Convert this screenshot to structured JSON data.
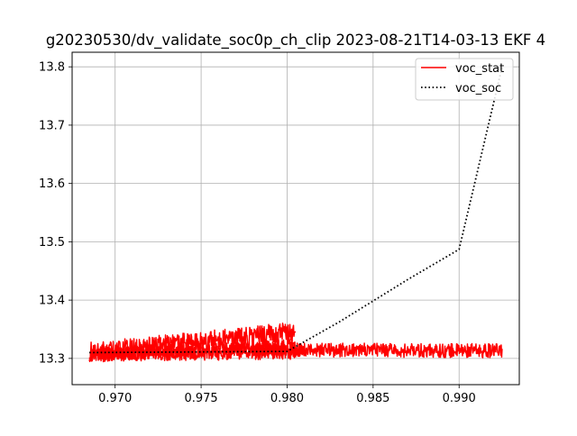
{
  "chart_data": {
    "type": "line",
    "title": "g20230530/dv_validate_soc0p_ch_clip   2023-08-21T14-03-13 EKF 4",
    "xlabel": "",
    "ylabel": "",
    "xlim": [
      0.9675,
      0.9935
    ],
    "ylim": [
      13.255,
      13.825
    ],
    "xticks": [
      0.97,
      0.975,
      0.98,
      0.985,
      0.99
    ],
    "xtick_labels": [
      "0.970",
      "0.975",
      "0.980",
      "0.985",
      "0.990"
    ],
    "yticks": [
      13.3,
      13.4,
      13.5,
      13.6,
      13.7,
      13.8
    ],
    "ytick_labels": [
      "13.3",
      "13.4",
      "13.5",
      "13.6",
      "13.7",
      "13.8"
    ],
    "grid": true,
    "legend_position": "top-right",
    "series": [
      {
        "name": "voc_stat",
        "color": "#ff0000",
        "style": "solid",
        "segments": [
          {
            "x_start": 0.9685,
            "x_end": 0.9805,
            "y_start": 13.307,
            "y_end": 13.31,
            "noise": 0.012
          },
          {
            "x_start": 0.9685,
            "x_end": 0.9805,
            "y_start": 13.31,
            "y_end": 13.345,
            "noise": 0.018
          },
          {
            "x_start": 0.969,
            "x_end": 0.9805,
            "y_start": 13.306,
            "y_end": 13.322,
            "noise": 0.012
          },
          {
            "x_start": 0.978,
            "x_end": 0.9925,
            "y_start": 13.315,
            "y_end": 13.313,
            "noise": 0.012
          }
        ]
      },
      {
        "name": "voc_soc",
        "color": "#000000",
        "style": "dotted",
        "x": [
          0.9685,
          0.98,
          0.983,
          0.987,
          0.99,
          0.9925
        ],
        "y": [
          13.31,
          13.312,
          13.362,
          13.435,
          13.487,
          13.8
        ]
      }
    ]
  }
}
